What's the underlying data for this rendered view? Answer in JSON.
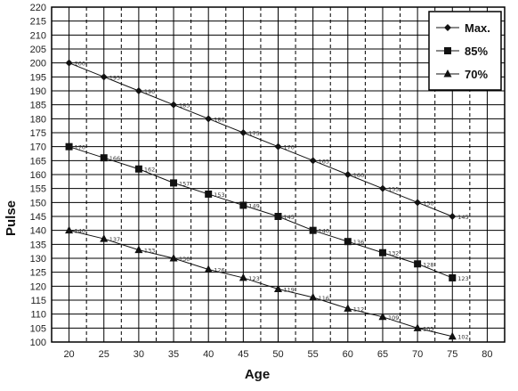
{
  "chart_data": {
    "type": "line",
    "xlabel": "Age",
    "ylabel": "Pulse",
    "xlim": [
      17.5,
      82.5
    ],
    "ylim": [
      100,
      220
    ],
    "x_ticks": [
      "20",
      "25",
      "30",
      "35",
      "40",
      "45",
      "50",
      "55",
      "60",
      "65",
      "70",
      "75",
      "80"
    ],
    "y_ticks": [
      "100",
      "105",
      "110",
      "115",
      "120",
      "125",
      "130",
      "135",
      "140",
      "145",
      "150",
      "155",
      "160",
      "165",
      "170",
      "175",
      "180",
      "185",
      "190",
      "195",
      "200",
      "205",
      "210",
      "215",
      "220"
    ],
    "grid": true,
    "legend_position": "top-right",
    "x": [
      20,
      25,
      30,
      35,
      40,
      45,
      50,
      55,
      60,
      65,
      70,
      75
    ],
    "series": [
      {
        "name": "Max.",
        "marker": "diamond",
        "values": [
          200,
          195,
          190,
          185,
          180,
          175,
          170,
          165,
          160,
          155,
          150,
          145
        ],
        "labels": [
          "200",
          "195",
          "190",
          "185",
          "180",
          "175",
          "170",
          "165",
          "160",
          "155",
          "150",
          "145"
        ]
      },
      {
        "name": "85%",
        "marker": "square",
        "values": [
          170,
          166,
          162,
          157,
          153,
          149,
          145,
          140,
          136,
          132,
          128,
          123
        ],
        "labels": [
          "170",
          "166",
          "162",
          "157",
          "153",
          "149",
          "145",
          "140",
          "136",
          "132",
          "128",
          "123"
        ]
      },
      {
        "name": "70%",
        "marker": "triangle",
        "values": [
          140,
          137,
          133,
          130,
          126,
          123,
          119,
          116,
          112,
          109,
          105,
          102
        ],
        "labels": [
          "140",
          "137",
          "133",
          "130",
          "126",
          "123",
          "119",
          "116",
          "112",
          "109",
          "105",
          "102"
        ]
      }
    ]
  }
}
